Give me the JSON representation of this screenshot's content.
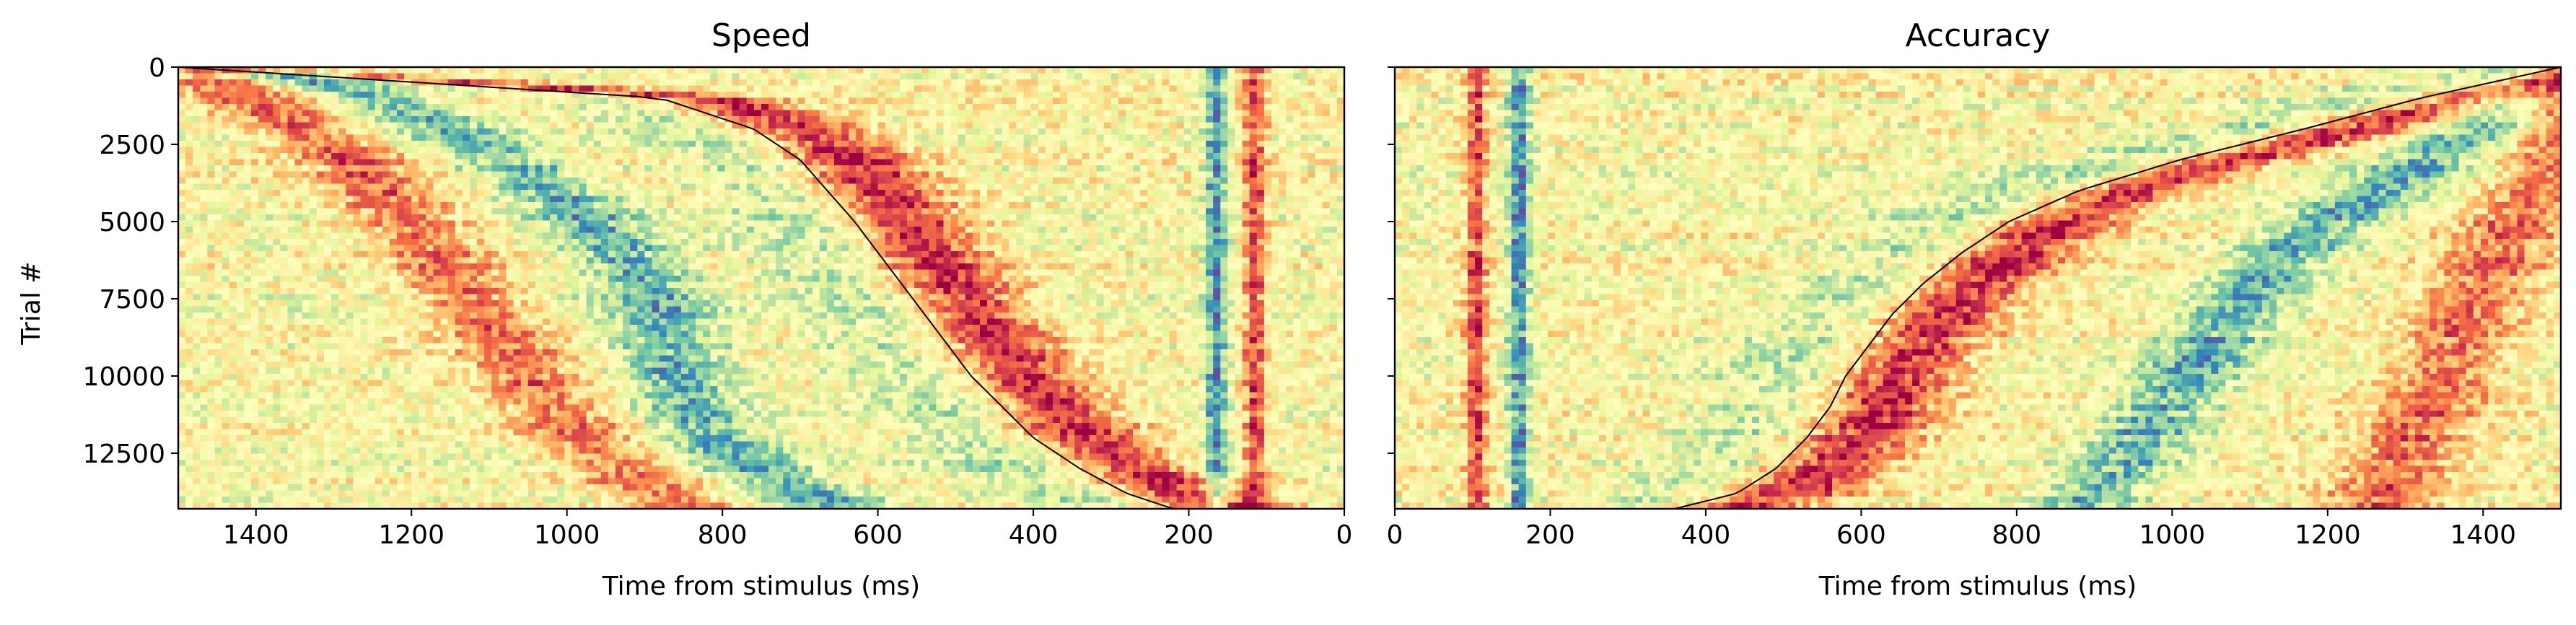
{
  "figure": {
    "colors": {
      "colormap": [
        "#5e4fa2",
        "#3288bd",
        "#66c2a5",
        "#abdda4",
        "#e6f598",
        "#ffffbf",
        "#fee08b",
        "#fdae61",
        "#f46d43",
        "#d53e4f",
        "#9e0142"
      ],
      "curve": "#000000",
      "frame": "#000000",
      "background": "#ffffff"
    },
    "shared_y_label": "Trial #"
  },
  "chart_data": [
    {
      "type": "heatmap",
      "title": "Speed",
      "xlabel": "Time from stimulus (ms)",
      "ylabel": "Trial #",
      "xlim": [
        1500,
        0
      ],
      "ylim": [
        14300,
        0
      ],
      "x_ticks": [
        1400,
        1200,
        1000,
        800,
        600,
        400,
        200,
        0
      ],
      "y_ticks": [
        0,
        2500,
        5000,
        7500,
        10000,
        12500
      ],
      "colormap": "Spectral_r",
      "grid": false,
      "legend": "none",
      "response_curve": {
        "trial": [
          0,
          1000,
          2000,
          3000,
          4000,
          5000,
          6000,
          7000,
          8000,
          9000,
          10000,
          11000,
          12000,
          13000,
          13800,
          14300
        ],
        "time_ms": [
          1500,
          880,
          760,
          700,
          665,
          630,
          600,
          570,
          540,
          510,
          480,
          440,
          400,
          340,
          280,
          220
        ]
      },
      "bands": [
        {
          "name": "early-ridge",
          "sign": 1,
          "time_ms": [
            1480,
            1410,
            1340,
            1280,
            1240,
            1200,
            1170,
            1140,
            1110,
            1080,
            1050,
            1020,
            980,
            930,
            880,
            850
          ]
        },
        {
          "name": "trough-band",
          "sign": -1,
          "time_ms": [
            1380,
            1240,
            1150,
            1080,
            1020,
            970,
            930,
            900,
            880,
            870,
            860,
            840,
            810,
            760,
            690,
            640
          ]
        },
        {
          "name": "stimulus-trough",
          "sign": -1,
          "time_ms": [
            165,
            165,
            165,
            165,
            165,
            165,
            165,
            165,
            165,
            165,
            165,
            165,
            165,
            165,
            165,
            165
          ],
          "fixed": true
        },
        {
          "name": "stimulus-peak",
          "sign": 1,
          "time_ms": [
            115,
            115,
            115,
            115,
            115,
            115,
            115,
            115,
            115,
            115,
            115,
            115,
            115,
            115,
            115,
            115
          ],
          "fixed": true
        }
      ]
    },
    {
      "type": "heatmap",
      "title": "Accuracy",
      "xlabel": "Time from stimulus (ms)",
      "ylabel": "",
      "xlim": [
        0,
        1500
      ],
      "ylim": [
        14300,
        0
      ],
      "x_ticks": [
        0,
        200,
        400,
        600,
        800,
        1000,
        1200,
        1400
      ],
      "y_ticks": [
        0,
        2500,
        5000,
        7500,
        10000,
        12500
      ],
      "colormap": "Spectral_r",
      "grid": false,
      "legend": "none",
      "response_curve": {
        "trial": [
          0,
          1000,
          2000,
          3000,
          4000,
          5000,
          6000,
          7000,
          8000,
          9000,
          10000,
          11000,
          12000,
          13000,
          13800,
          14300
        ],
        "time_ms": [
          1500,
          1320,
          1170,
          1010,
          880,
          790,
          730,
          680,
          640,
          610,
          580,
          560,
          530,
          490,
          440,
          360
        ]
      },
      "bands": [
        {
          "name": "late-trough",
          "sign": -1,
          "time_ms": [
            1480,
            1440,
            1400,
            1330,
            1270,
            1200,
            1150,
            1110,
            1080,
            1050,
            1020,
            990,
            960,
            930,
            900,
            880
          ]
        },
        {
          "name": "late-ridge",
          "sign": 1,
          "time_ms": [
            1500,
            1500,
            1500,
            1490,
            1470,
            1440,
            1420,
            1400,
            1380,
            1360,
            1350,
            1330,
            1310,
            1290,
            1270,
            1260
          ]
        },
        {
          "name": "stimulus-peak",
          "sign": 1,
          "time_ms": [
            105,
            105,
            105,
            105,
            105,
            105,
            105,
            105,
            105,
            105,
            105,
            105,
            105,
            105,
            105,
            105
          ],
          "fixed": true
        },
        {
          "name": "stimulus-trough",
          "sign": -1,
          "time_ms": [
            160,
            160,
            160,
            160,
            160,
            160,
            160,
            160,
            160,
            160,
            160,
            160,
            160,
            160,
            160,
            160
          ],
          "fixed": true
        }
      ]
    }
  ]
}
